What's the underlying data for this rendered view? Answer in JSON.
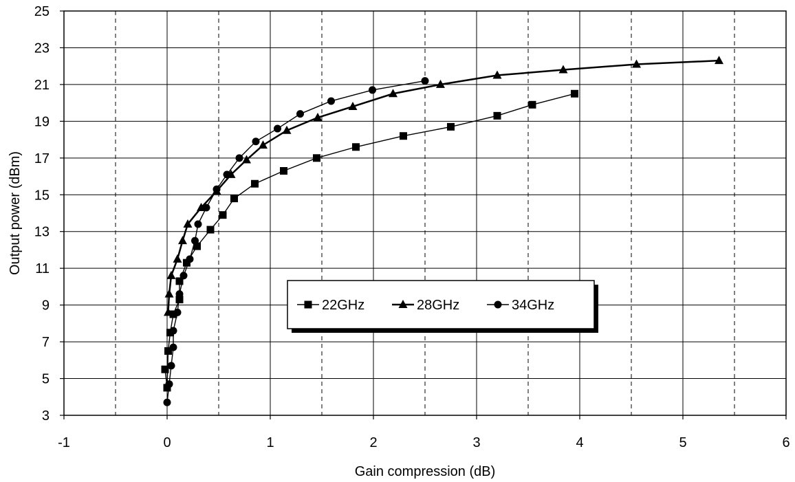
{
  "chart_data": {
    "type": "line",
    "title": "",
    "xlabel": "Gain compression (dB)",
    "ylabel": "Output power (dBm)",
    "xlim": [
      -1,
      6
    ],
    "ylim": [
      3,
      25
    ],
    "xticks": [
      -1,
      0,
      1,
      2,
      3,
      4,
      5,
      6
    ],
    "yticks": [
      3,
      5,
      7,
      9,
      11,
      13,
      15,
      17,
      19,
      21,
      23,
      25
    ],
    "grid": "major solid, half-unit dashed vertical",
    "legend_position": "center",
    "series": [
      {
        "name": "22GHz",
        "marker": "square",
        "x": [
          -0.02,
          0.0,
          0.01,
          0.03,
          0.06,
          0.12,
          0.12,
          0.19,
          0.29,
          0.42,
          0.54,
          0.65,
          0.85,
          1.13,
          1.45,
          1.83,
          2.29,
          2.75,
          3.2,
          3.54,
          3.95
        ],
        "y": [
          5.5,
          4.5,
          6.5,
          7.5,
          8.5,
          9.3,
          10.3,
          11.3,
          12.2,
          13.1,
          13.9,
          14.8,
          15.6,
          16.3,
          17.0,
          17.6,
          18.2,
          18.7,
          19.3,
          19.9,
          20.5
        ]
      },
      {
        "name": "28GHz",
        "marker": "triangle",
        "x": [
          0.01,
          0.02,
          0.04,
          0.1,
          0.15,
          0.2,
          0.33,
          0.48,
          0.62,
          0.77,
          0.93,
          1.16,
          1.46,
          1.8,
          2.19,
          2.65,
          3.2,
          3.84,
          4.55,
          5.35
        ],
        "y": [
          8.6,
          9.6,
          10.6,
          11.5,
          12.5,
          13.4,
          14.3,
          15.2,
          16.1,
          16.9,
          17.7,
          18.5,
          19.2,
          19.8,
          20.5,
          21.0,
          21.5,
          21.8,
          22.1,
          22.3
        ]
      },
      {
        "name": "34GHz",
        "marker": "circle",
        "x": [
          0.0,
          0.02,
          0.04,
          0.06,
          0.06,
          0.1,
          0.12,
          0.16,
          0.22,
          0.27,
          0.3,
          0.38,
          0.48,
          0.58,
          0.7,
          0.86,
          1.07,
          1.29,
          1.59,
          1.99,
          2.5
        ],
        "y": [
          3.7,
          4.7,
          5.7,
          6.7,
          7.6,
          8.6,
          9.6,
          10.6,
          11.5,
          12.5,
          13.4,
          14.3,
          15.3,
          16.1,
          17.0,
          17.9,
          18.6,
          19.4,
          20.1,
          20.7,
          21.2
        ]
      }
    ]
  }
}
